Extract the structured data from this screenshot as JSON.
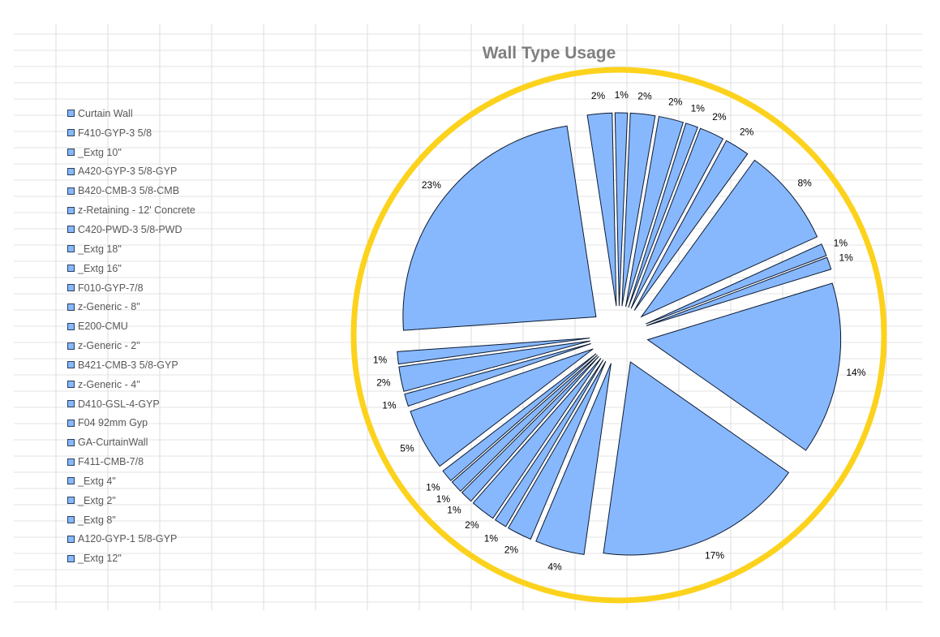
{
  "chart_data": {
    "type": "pie",
    "title": "Wall Type Usage",
    "exploded": true,
    "legend_position": "left",
    "fill_color": "#87b8fd",
    "edge_color": "#0b1a33",
    "ring_color": "#fcd21d",
    "grid": true,
    "slices": [
      {
        "label": "Curtain Wall",
        "value": 14,
        "display": "14%"
      },
      {
        "label": "F410-GYP-3 5/8",
        "value": 17,
        "display": "17%"
      },
      {
        "label": "_Extg 10\"",
        "value": 4,
        "display": "4%"
      },
      {
        "label": "A420-GYP-3 5/8-GYP",
        "value": 2,
        "display": "2%"
      },
      {
        "label": "B420-CMB-3 5/8-CMB",
        "value": 1,
        "display": "1%"
      },
      {
        "label": "z-Retaining - 12' Concrete",
        "value": 2,
        "display": "2%"
      },
      {
        "label": "C420-PWD-3 5/8-PWD",
        "value": 1,
        "display": "1%"
      },
      {
        "label": "_Extg 18\"",
        "value": 1,
        "display": "1%"
      },
      {
        "label": "_Extg 16\"",
        "value": 1,
        "display": "1%"
      },
      {
        "label": "F010-GYP-7/8",
        "value": 5,
        "display": "5%"
      },
      {
        "label": "z-Generic - 8\"",
        "value": 1,
        "display": "1%"
      },
      {
        "label": "E200-CMU",
        "value": 2,
        "display": "2%"
      },
      {
        "label": "z-Generic - 2\"",
        "value": 1,
        "display": "1%"
      },
      {
        "label": "B421-CMB-3 5/8-GYP",
        "value": 23,
        "display": "23%"
      },
      {
        "label": "z-Generic - 4\"",
        "value": 2,
        "display": "2%"
      },
      {
        "label": "D410-GSL-4-GYP",
        "value": 1,
        "display": "1%"
      },
      {
        "label": "F04 92mm Gyp",
        "value": 2,
        "display": "2%"
      },
      {
        "label": "GA-CurtainWall",
        "value": 2,
        "display": "2%"
      },
      {
        "label": "F411-CMB-7/8",
        "value": 1,
        "display": "1%"
      },
      {
        "label": "_Extg 4\"",
        "value": 2,
        "display": "2%"
      },
      {
        "label": "_Extg 2\"",
        "value": 2,
        "display": "2%"
      },
      {
        "label": "_Extg 8\"",
        "value": 8,
        "display": "8%"
      },
      {
        "label": "A120-GYP-1 5/8-GYP",
        "value": 1,
        "display": "1%"
      },
      {
        "label": "_Extg 12\"",
        "value": 1,
        "display": "1%"
      }
    ]
  }
}
